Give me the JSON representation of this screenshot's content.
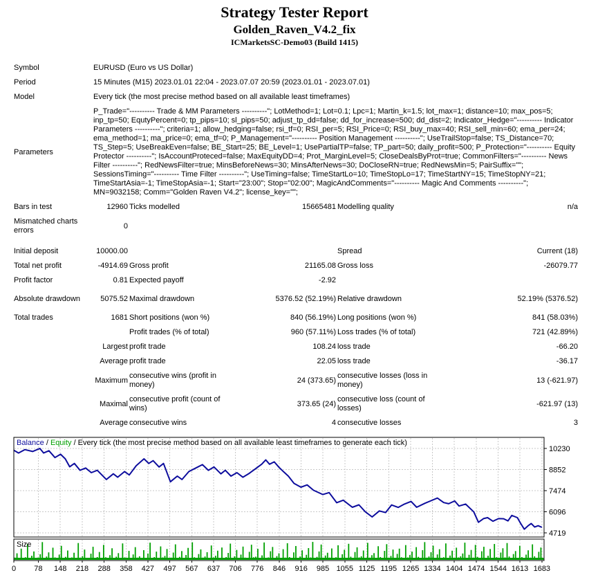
{
  "header": {
    "title": "Strategy Tester Report",
    "ea_name": "Golden_Raven_V4.2_fix",
    "server": "ICMarketsSC-Demo03 (Build 1415)"
  },
  "report": {
    "info_rows": [
      {
        "label": "Symbol",
        "value": "EURUSD (Euro vs US Dollar)"
      },
      {
        "label": "Period",
        "value": "15 Minutes (M15) 2023.01.01 22:04 - 2023.07.07 20:59 (2023.01.01 - 2023.07.01)"
      },
      {
        "label": "Model",
        "value": "Every tick (the most precise method based on all available least timeframes)"
      },
      {
        "label": "Parameters",
        "value": "P_Trade=\"---------- Trade & MM Parameters ----------\"; LotMethod=1; Lot=0.1; Lpc=1; Martin_k=1.5; lot_max=1; distance=10; max_pos=5; inp_tp=50; EqutyPercent=0; tp_pips=10; sl_pips=50; adjust_tp_dd=false; dd_for_increase=500; dd_dist=2; Indicator_Hedge=\"---------- Indicator Parameters ----------\"; criteria=1; allow_hedging=false; rsi_tf=0; RSI_per=5; RSI_Price=0; RSI_buy_max=40; RSI_sell_min=60; ema_per=24; ema_method=1; ma_price=0; ema_tf=0; P_Management=\"---------- Position Management ----------\"; UseTrailStop=false; TS_Distance=70; TS_Step=5; UseBreakEven=false; BE_Start=25; BE_Level=1; UsePartialTP=false; TP_part=50; daily_profit=500; P_Protection=\"---------- Equity Protector ----------\"; IsAccountProteced=false; MaxEquityDD=4; Prot_MarginLevel=5; CloseDealsByProt=true; CommonFilters=\"---------- News Filter ----------\"; RedNewsFilter=true; MinsBeforeNews=30; MinsAfterNews=30; DoCloseRN=true; RedNewsMin=5; PairSuffix=\"\"; SessionsTiming=\"---------- Time Filter ----------\"; UseTiming=false; TimeStartLo=10; TimeStopLo=17; TimeStartNY=15; TimeStopNY=21; TimeStartAsia=-1; TimeStopAsia=-1; Start=\"23:00\"; Stop=\"02:00\"; MagicAndComments=\"---------- Magic And Comments ----------\"; MN=9032158; Comm=\"Golden Raven V4.2\"; license_key=\"\";"
      }
    ],
    "stats_rows": [
      [
        "Bars in test",
        "12960",
        "Ticks modelled",
        "15665481",
        "Modelling quality",
        "n/a"
      ],
      [
        "Mismatched charts errors",
        "0",
        "",
        "",
        "",
        ""
      ],
      [
        "Initial deposit",
        "10000.00",
        "",
        "",
        "Spread",
        "Current (18)"
      ],
      [
        "Total net profit",
        "-4914.69",
        "Gross profit",
        "21165.08",
        "Gross loss",
        "-26079.77"
      ],
      [
        "Profit factor",
        "0.81",
        "Expected payoff",
        "-2.92",
        "",
        ""
      ],
      [
        "Absolute drawdown",
        "5075.52",
        "Maximal drawdown",
        "5376.52 (52.19%)",
        "Relative drawdown",
        "52.19% (5376.52)"
      ],
      [
        "Total trades",
        "1681",
        "Short positions (won %)",
        "840 (56.19%)",
        "Long positions (won %)",
        "841 (58.03%)"
      ],
      [
        "",
        "",
        "Profit trades (% of total)",
        "960 (57.11%)",
        "Loss trades (% of total)",
        "721 (42.89%)"
      ],
      [
        "",
        "Largest",
        "profit trade",
        "108.24",
        "loss trade",
        "-66.20"
      ],
      [
        "",
        "Average",
        "profit trade",
        "22.05",
        "loss trade",
        "-36.17"
      ],
      [
        "",
        "Maximum",
        "consecutive wins (profit in money)",
        "24 (373.65)",
        "consecutive losses (loss in money)",
        "13 (-621.97)"
      ],
      [
        "",
        "Maximal",
        "consecutive profit (count of wins)",
        "373.65 (24)",
        "consecutive loss (count of losses)",
        "-621.97 (13)"
      ],
      [
        "",
        "Average",
        "consecutive wins",
        "4",
        "consecutive losses",
        "3"
      ]
    ]
  },
  "chart_data": {
    "type": "line",
    "legend": {
      "balance_label": "Balance",
      "separator": " / ",
      "equity_label": "Equity",
      "suffix": " / Every tick (the most precise method based on all available least timeframes to generate each tick)"
    },
    "size_label": "Size",
    "balance_color": "#0d0d9d",
    "equity_color": "#00a000",
    "bar_color": "#00a000",
    "grid_color": "#c8c8c8",
    "border_color": "#000000",
    "y_ticks": [
      10230,
      8852,
      7474,
      6096,
      4719
    ],
    "y_domain": [
      4450,
      10950
    ],
    "x_ticks": [
      0,
      78,
      148,
      218,
      288,
      358,
      427,
      497,
      567,
      637,
      706,
      776,
      846,
      916,
      985,
      1055,
      1125,
      1195,
      1265,
      1334,
      1404,
      1474,
      1544,
      1613,
      1683
    ],
    "x_domain": [
      0,
      1690
    ],
    "balance_points": [
      [
        0,
        10110
      ],
      [
        15,
        9930
      ],
      [
        35,
        10150
      ],
      [
        60,
        10030
      ],
      [
        83,
        10230
      ],
      [
        95,
        9930
      ],
      [
        112,
        10080
      ],
      [
        131,
        9630
      ],
      [
        149,
        9850
      ],
      [
        164,
        9550
      ],
      [
        178,
        9030
      ],
      [
        193,
        9250
      ],
      [
        211,
        8800
      ],
      [
        229,
        8950
      ],
      [
        247,
        8650
      ],
      [
        266,
        8800
      ],
      [
        295,
        8200
      ],
      [
        317,
        8570
      ],
      [
        331,
        8350
      ],
      [
        353,
        8720
      ],
      [
        368,
        8500
      ],
      [
        390,
        9100
      ],
      [
        415,
        9550
      ],
      [
        430,
        9250
      ],
      [
        444,
        9430
      ],
      [
        463,
        9020
      ],
      [
        477,
        9250
      ],
      [
        499,
        8050
      ],
      [
        521,
        8420
      ],
      [
        536,
        8200
      ],
      [
        558,
        8720
      ],
      [
        580,
        8950
      ],
      [
        601,
        9170
      ],
      [
        620,
        8800
      ],
      [
        638,
        9020
      ],
      [
        660,
        8570
      ],
      [
        674,
        8800
      ],
      [
        692,
        8420
      ],
      [
        711,
        8650
      ],
      [
        730,
        8350
      ],
      [
        750,
        8600
      ],
      [
        770,
        8900
      ],
      [
        790,
        9200
      ],
      [
        803,
        9480
      ],
      [
        815,
        9200
      ],
      [
        830,
        9350
      ],
      [
        845,
        9000
      ],
      [
        860,
        8700
      ],
      [
        875,
        8420
      ],
      [
        893,
        7950
      ],
      [
        915,
        7700
      ],
      [
        935,
        7850
      ],
      [
        955,
        7500
      ],
      [
        985,
        7220
      ],
      [
        1005,
        7350
      ],
      [
        1029,
        6690
      ],
      [
        1050,
        6850
      ],
      [
        1079,
        6390
      ],
      [
        1100,
        6550
      ],
      [
        1120,
        6100
      ],
      [
        1142,
        5760
      ],
      [
        1165,
        6150
      ],
      [
        1185,
        6050
      ],
      [
        1204,
        6540
      ],
      [
        1225,
        6380
      ],
      [
        1245,
        6600
      ],
      [
        1266,
        6770
      ],
      [
        1284,
        6390
      ],
      [
        1310,
        6650
      ],
      [
        1330,
        6820
      ],
      [
        1350,
        6990
      ],
      [
        1370,
        6700
      ],
      [
        1386,
        6620
      ],
      [
        1405,
        6800
      ],
      [
        1419,
        6470
      ],
      [
        1440,
        6600
      ],
      [
        1466,
        6090
      ],
      [
        1481,
        5410
      ],
      [
        1497,
        5650
      ],
      [
        1510,
        5712
      ],
      [
        1527,
        5480
      ],
      [
        1545,
        5650
      ],
      [
        1561,
        5640
      ],
      [
        1575,
        5500
      ],
      [
        1587,
        5860
      ],
      [
        1605,
        5712
      ],
      [
        1615,
        5350
      ],
      [
        1627,
        4960
      ],
      [
        1640,
        5200
      ],
      [
        1649,
        5330
      ],
      [
        1660,
        5100
      ],
      [
        1671,
        5184
      ],
      [
        1683,
        5085
      ]
    ],
    "size_bars": [
      12,
      35,
      8,
      60,
      10,
      14,
      85,
      9,
      22,
      45,
      7,
      12,
      30,
      95,
      11,
      18,
      40,
      8,
      65,
      13,
      9,
      28,
      75,
      10,
      16,
      50,
      9,
      13,
      38,
      7,
      90,
      12,
      20,
      55,
      8,
      11,
      33,
      70,
      10,
      15,
      42,
      9,
      80,
      14,
      8,
      25,
      62,
      11,
      17,
      36,
      10,
      88,
      13,
      7,
      48,
      9,
      29,
      68,
      12,
      19,
      8,
      52,
      11,
      34,
      92,
      10,
      15,
      44,
      8,
      72,
      13,
      21,
      58,
      9,
      12,
      39,
      83,
      11,
      16,
      47,
      7,
      26,
      64,
      10,
      94,
      14,
      8,
      31,
      56,
      12,
      18,
      41,
      9,
      77,
      13,
      22,
      49,
      8,
      66,
      11,
      15,
      37,
      87,
      10,
      19,
      53,
      7,
      28,
      71,
      12,
      9,
      43,
      81,
      14,
      17,
      59,
      8,
      24,
      93,
      11,
      13,
      46,
      69,
      10,
      20,
      35,
      8,
      57,
      12,
      89,
      15,
      9,
      40,
      74,
      11,
      18,
      51,
      7,
      27,
      63,
      13,
      96,
      10,
      16,
      45,
      82,
      9,
      23,
      38,
      12,
      61,
      8,
      14,
      78,
      10,
      30,
      54,
      11,
      86,
      17,
      7,
      42,
      67,
      13,
      19,
      50,
      9,
      91,
      12,
      25,
      36,
      8,
      73,
      15,
      10,
      48,
      84,
      11,
      21,
      55,
      7,
      32,
      60,
      14,
      9,
      79,
      13,
      26,
      44,
      10,
      68,
      16,
      8,
      52,
      95,
      12,
      18,
      41,
      76,
      9,
      29,
      57,
      11,
      14,
      88,
      7,
      23,
      49,
      10,
      65,
      13,
      19,
      34,
      92,
      8,
      27,
      53,
      12,
      80,
      16,
      9,
      46,
      70,
      11,
      22,
      58,
      7,
      85,
      14,
      10,
      39,
      62,
      13,
      90,
      18,
      8,
      31,
      47,
      11,
      75,
      15,
      9,
      28,
      51,
      12,
      83,
      19,
      7,
      43,
      66,
      10
    ]
  }
}
